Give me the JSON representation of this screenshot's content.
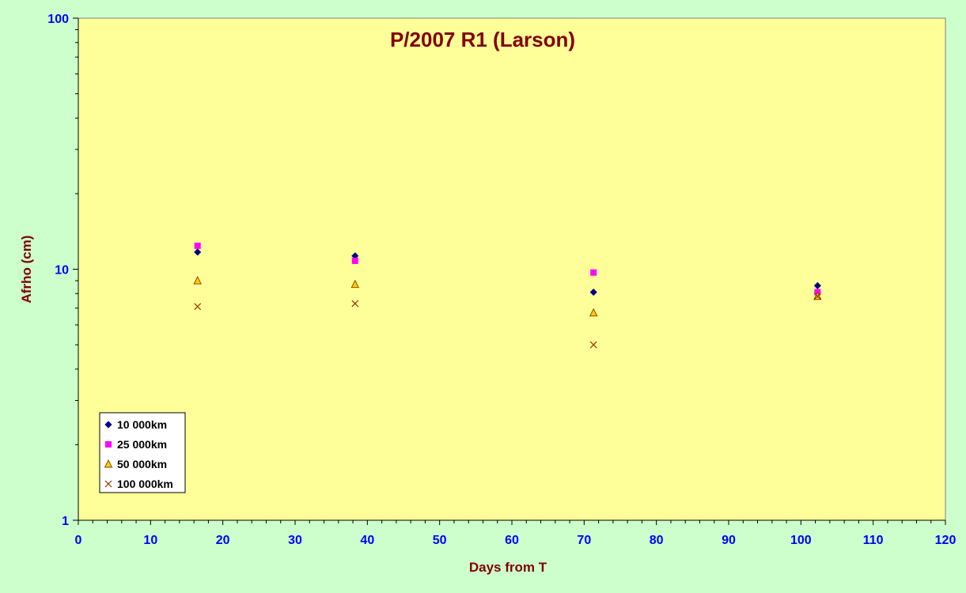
{
  "chart_data": {
    "type": "scatter",
    "title": "P/2007 R1 (Larson)",
    "xlabel": "Days from T",
    "ylabel": "Afrho (cm)",
    "xlim": [
      0,
      120
    ],
    "ylim": [
      1,
      100
    ],
    "y_scale": "log",
    "x_ticks": [
      "0",
      "10",
      "20",
      "30",
      "40",
      "50",
      "60",
      "70",
      "80",
      "90",
      "100",
      "110",
      "120"
    ],
    "y_ticks": [
      "1",
      "10",
      "100"
    ],
    "grid": false,
    "legend_position": "bottom-left",
    "colors": {
      "outer_background": "#ccffcc",
      "plot_background": "#ffff99",
      "tick_labels": "#0000ff",
      "titles": "#800000"
    },
    "series": [
      {
        "name": "10 000km",
        "marker": "diamond",
        "color": "#000080",
        "x": [
          16.5,
          38.3,
          71.3,
          102.3
        ],
        "y": [
          11.7,
          11.3,
          8.1,
          8.6
        ]
      },
      {
        "name": "25 000km",
        "marker": "square",
        "color": "#ff00ff",
        "x": [
          16.5,
          38.3,
          71.3,
          102.3
        ],
        "y": [
          12.4,
          10.8,
          9.7,
          8.1
        ]
      },
      {
        "name": "50 000km",
        "marker": "triangle",
        "color": "#ffcc00",
        "x": [
          16.5,
          38.3,
          71.3,
          102.3
        ],
        "y": [
          9.0,
          8.7,
          6.7,
          7.8
        ]
      },
      {
        "name": "100 000km",
        "marker": "cross",
        "color": "#993300",
        "x": [
          16.5,
          38.3,
          71.3,
          102.3
        ],
        "y": [
          7.1,
          7.3,
          5.0,
          7.8
        ]
      }
    ]
  }
}
